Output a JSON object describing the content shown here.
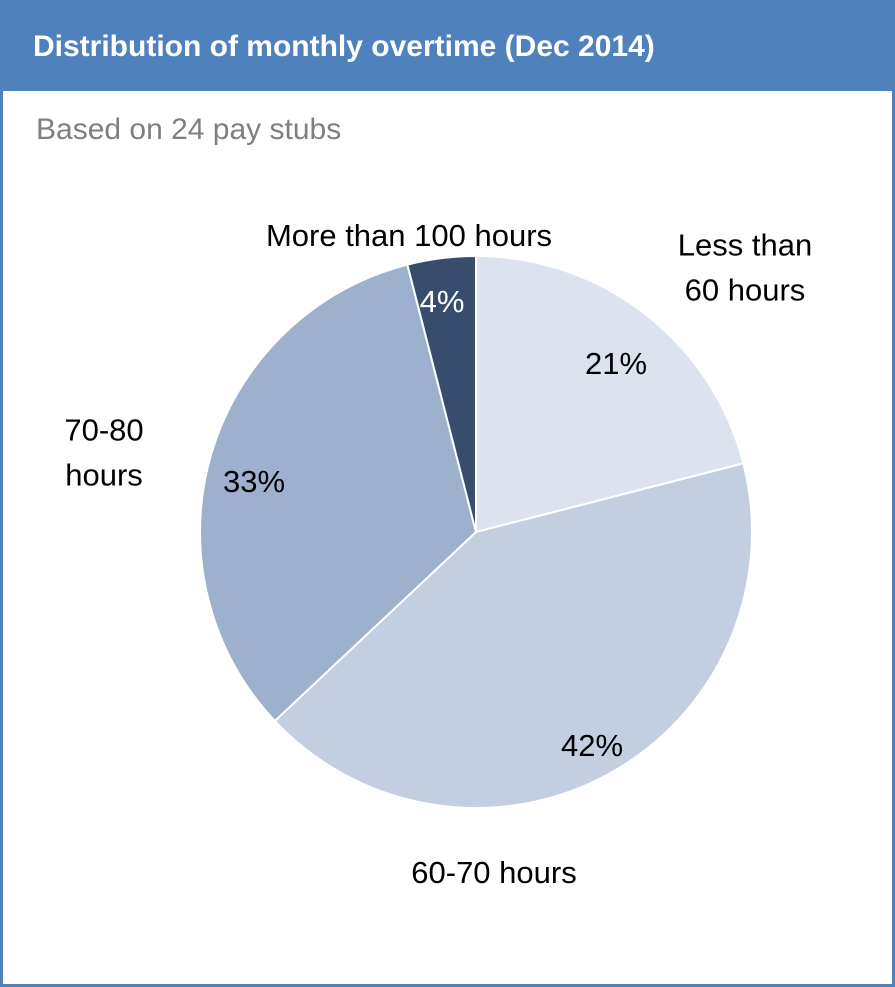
{
  "header": {
    "title": "Distribution of monthly overtime (Dec 2014)",
    "subtitle": "Based on 24 pay stubs"
  },
  "chart_data": {
    "type": "pie",
    "title": "Distribution of monthly overtime (Dec 2014)",
    "subtitle": "Based on 24 pay stubs",
    "slices": [
      {
        "label": "Less than 60 hours",
        "label_lines": [
          "Less than",
          "60 hours"
        ],
        "value": 21,
        "value_label": "21%",
        "color": "#DCE3EE",
        "text_color": "#000000"
      },
      {
        "label": "60-70 hours",
        "label_lines": [
          "60-70 hours"
        ],
        "value": 42,
        "value_label": "42%",
        "color": "#C3CEE0",
        "text_color": "#000000"
      },
      {
        "label": "70-80 hours",
        "label_lines": [
          "70-80",
          "hours"
        ],
        "value": 33,
        "value_label": "33%",
        "color": "#9DB0CD",
        "text_color": "#000000"
      },
      {
        "label": "More than 100 hours",
        "label_lines": [
          "More than 100 hours"
        ],
        "value": 4,
        "value_label": "4%",
        "color": "#384D6E",
        "text_color": "#ffffff"
      }
    ],
    "start_angle_deg": 0,
    "direction": "clockwise",
    "legend": "none"
  },
  "colors": {
    "accent": "#4F81BD",
    "subtitle_text": "#7F7F7F"
  }
}
